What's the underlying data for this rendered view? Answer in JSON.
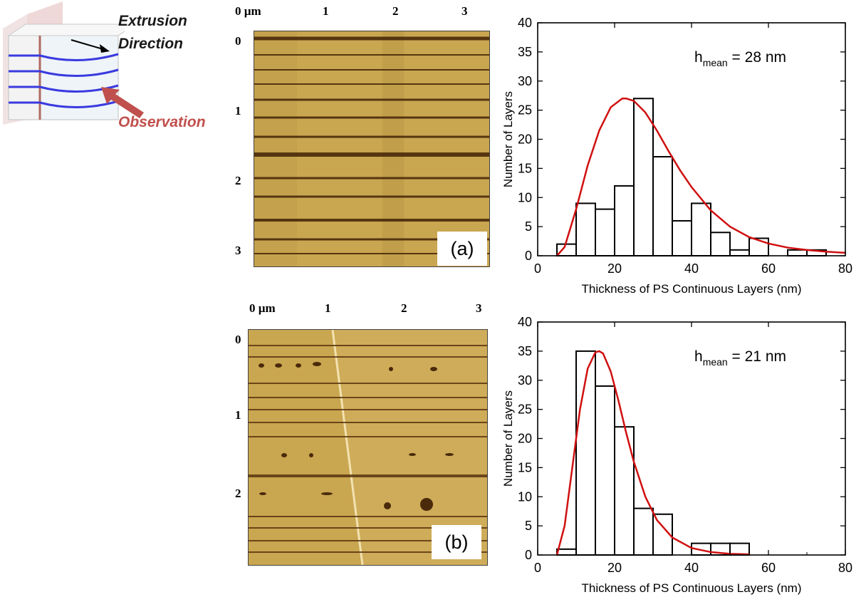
{
  "schematic": {
    "extrusion_line1": "Extrusion",
    "extrusion_line2": "Direction",
    "observation": "Observation"
  },
  "afm": [
    {
      "label": "(a)",
      "x_ticks": [
        "0 µm",
        "1",
        "2",
        "3"
      ],
      "y_ticks": [
        "0",
        "1",
        "2",
        "3"
      ]
    },
    {
      "label": "(b)",
      "x_ticks": [
        "0 µm",
        "1",
        "2",
        "3"
      ],
      "y_ticks": [
        "0",
        "1",
        "2"
      ]
    }
  ],
  "colors": {
    "fit": "#d01010",
    "bars": "#000000",
    "afm_background": "#c9a650",
    "layer": "#4a2a0a",
    "observation_arrow": "#c0504d"
  },
  "chart_data": [
    {
      "type": "bar",
      "xlabel": "Thickness of PS Continuous Layers (nm)",
      "ylabel": "Number of Layers",
      "annotation": {
        "base": "h",
        "sub": "mean",
        "rest": " = 28 nm"
      },
      "xlim": [
        0,
        80
      ],
      "ylim": [
        0,
        40
      ],
      "x_ticks": [
        0,
        20,
        40,
        60,
        80
      ],
      "y_ticks": [
        0,
        5,
        10,
        15,
        20,
        25,
        30,
        35,
        40
      ],
      "bin_edges": [
        5,
        10,
        15,
        20,
        25,
        30,
        35,
        40,
        45,
        50,
        55,
        60,
        65,
        70,
        75
      ],
      "counts": [
        2,
        9,
        8,
        12,
        27,
        17,
        6,
        9,
        4,
        1,
        3,
        0,
        1,
        1
      ],
      "fit_curve": {
        "x": [
          5,
          7,
          10,
          13,
          16,
          19,
          22,
          23,
          25,
          28,
          31,
          34,
          37,
          40,
          45,
          50,
          55,
          60,
          65,
          70,
          75,
          80
        ],
        "y": [
          0,
          1.5,
          8,
          15.5,
          21.5,
          25.5,
          27,
          27,
          26.6,
          24.6,
          21.5,
          18,
          14.7,
          11.8,
          7.8,
          5,
          3.2,
          2.1,
          1.4,
          1,
          0.7,
          0.5
        ]
      }
    },
    {
      "type": "bar",
      "xlabel": "Thickness of PS Continuous Layers (nm)",
      "ylabel": "Number of Layers",
      "annotation": {
        "base": "h",
        "sub": "mean",
        "rest": " = 21 nm"
      },
      "xlim": [
        0,
        80
      ],
      "ylim": [
        0,
        40
      ],
      "x_ticks": [
        0,
        20,
        40,
        60,
        80
      ],
      "y_ticks": [
        0,
        5,
        10,
        15,
        20,
        25,
        30,
        35,
        40
      ],
      "bin_edges": [
        5,
        10,
        15,
        20,
        25,
        30,
        35,
        40,
        45,
        50,
        55
      ],
      "counts": [
        1,
        35,
        29,
        22,
        8,
        7,
        0,
        2,
        2,
        2
      ],
      "fit_curve": {
        "x": [
          5,
          7,
          9,
          11,
          13,
          15,
          16,
          17,
          19,
          21,
          23,
          25,
          28,
          31,
          35,
          40,
          45,
          50,
          55
        ],
        "y": [
          0,
          5,
          15,
          25,
          32,
          34.8,
          35,
          34.6,
          31.5,
          26.5,
          21,
          16,
          10,
          6,
          3,
          1.2,
          0.5,
          0.2,
          0.1
        ]
      }
    }
  ]
}
